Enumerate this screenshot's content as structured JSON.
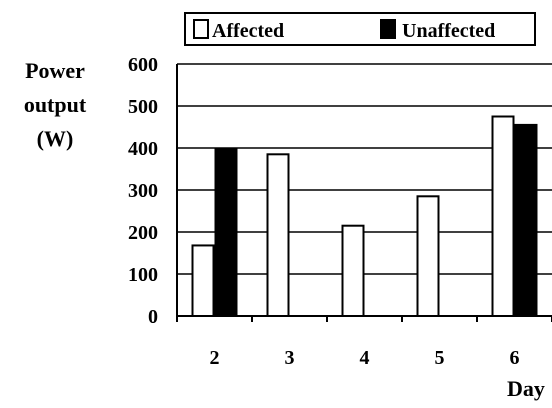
{
  "chart_data": {
    "type": "bar",
    "categories": [
      "2",
      "3",
      "4",
      "5",
      "6"
    ],
    "series": [
      {
        "name": "Affected",
        "color": "#ffffff",
        "values": [
          168,
          385,
          215,
          285,
          475
        ]
      },
      {
        "name": "Unaffected",
        "color": "#000000",
        "values": [
          398,
          null,
          null,
          null,
          455
        ]
      }
    ],
    "ylabel_lines": [
      "Power",
      "output",
      "(W)"
    ],
    "xlabel": "Day",
    "ylim": [
      0,
      600
    ],
    "yticks": [
      "0",
      "100",
      "200",
      "300",
      "400",
      "500",
      "600"
    ],
    "grid": true,
    "legend_position": "top"
  }
}
